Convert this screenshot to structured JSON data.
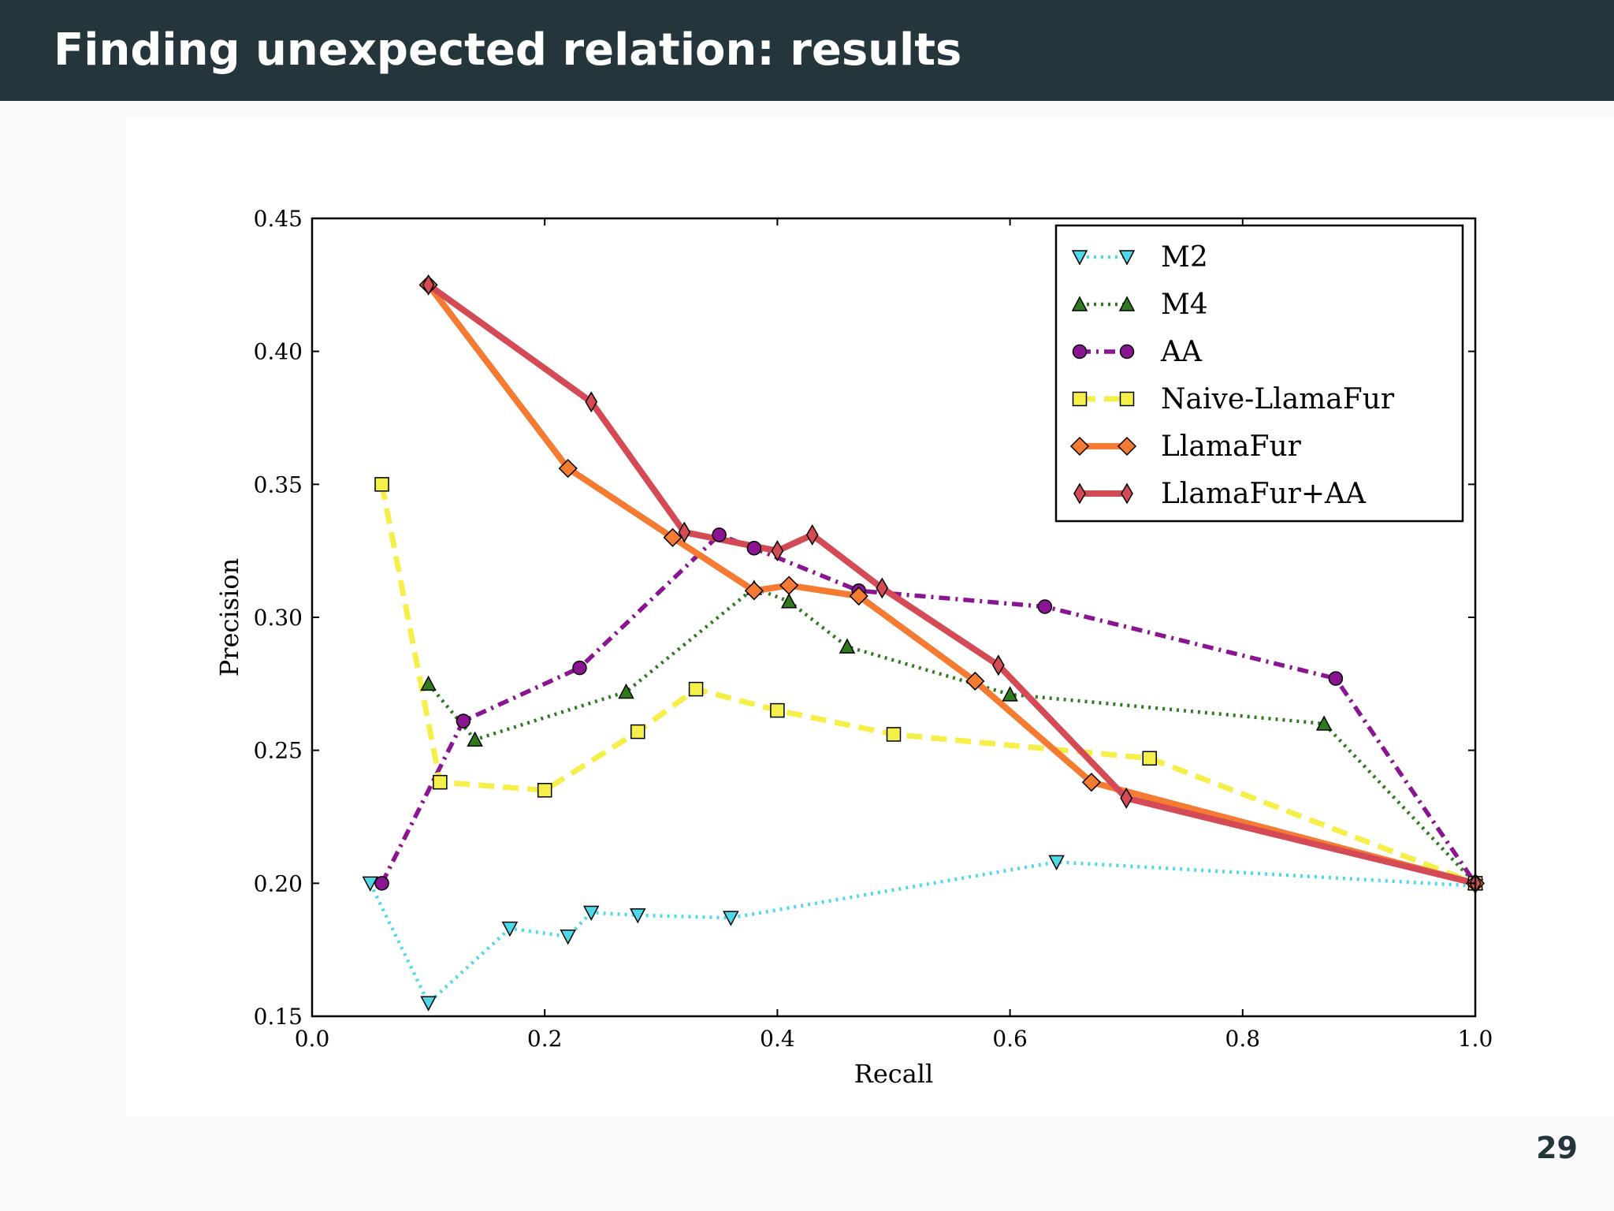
{
  "slide": {
    "title": "Finding unexpected relation: results",
    "page_number": "29"
  },
  "chart_data": {
    "type": "line",
    "title": "",
    "xlabel": "Recall",
    "ylabel": "Precision",
    "xlim": [
      0.0,
      1.0
    ],
    "ylim": [
      0.15,
      0.45
    ],
    "xticks": [
      "0.0",
      "0.2",
      "0.4",
      "0.6",
      "0.8",
      "1.0"
    ],
    "yticks": [
      "0.15",
      "0.20",
      "0.25",
      "0.30",
      "0.35",
      "0.40",
      "0.45"
    ],
    "grid": false,
    "legend_position": "top-right",
    "series": [
      {
        "name": "M2",
        "color": "#4fd8e8",
        "marker": "triangle-down",
        "line_style": "dotted",
        "x": [
          0.05,
          0.1,
          0.17,
          0.22,
          0.24,
          0.28,
          0.36,
          0.64,
          1.0
        ],
        "y": [
          0.2,
          0.155,
          0.183,
          0.18,
          0.189,
          0.188,
          0.187,
          0.208,
          0.199
        ]
      },
      {
        "name": "M4",
        "color": "#2f7a1e",
        "marker": "triangle-up",
        "line_style": "dotted",
        "x": [
          0.1,
          0.14,
          0.27,
          0.38,
          0.41,
          0.46,
          0.6,
          0.87,
          1.0
        ],
        "y": [
          0.275,
          0.254,
          0.272,
          0.311,
          0.306,
          0.289,
          0.271,
          0.26,
          0.2
        ]
      },
      {
        "name": "AA",
        "color": "#8a1491",
        "marker": "circle",
        "line_style": "dashdot",
        "x": [
          0.06,
          0.13,
          0.23,
          0.35,
          0.38,
          0.47,
          0.63,
          0.88,
          1.0
        ],
        "y": [
          0.2,
          0.261,
          0.281,
          0.331,
          0.326,
          0.31,
          0.304,
          0.277,
          0.2
        ]
      },
      {
        "name": "Naive-LlamaFur",
        "color": "#f5ef4a",
        "marker": "square",
        "line_style": "dashed",
        "x": [
          0.06,
          0.11,
          0.2,
          0.28,
          0.33,
          0.4,
          0.5,
          0.72,
          1.0
        ],
        "y": [
          0.35,
          0.238,
          0.235,
          0.257,
          0.273,
          0.265,
          0.256,
          0.247,
          0.2
        ]
      },
      {
        "name": "LlamaFur",
        "color": "#f57a32",
        "marker": "diamond",
        "line_style": "solid",
        "x": [
          0.1,
          0.22,
          0.31,
          0.38,
          0.41,
          0.47,
          0.57,
          0.67,
          1.0
        ],
        "y": [
          0.425,
          0.356,
          0.33,
          0.31,
          0.312,
          0.308,
          0.276,
          0.238,
          0.2
        ]
      },
      {
        "name": "LlamaFur+AA",
        "color": "#d44a55",
        "marker": "thin-diamond",
        "line_style": "solid",
        "x": [
          0.1,
          0.24,
          0.32,
          0.4,
          0.43,
          0.49,
          0.59,
          0.7,
          1.0
        ],
        "y": [
          0.425,
          0.381,
          0.332,
          0.325,
          0.331,
          0.311,
          0.282,
          0.232,
          0.2
        ]
      }
    ]
  }
}
